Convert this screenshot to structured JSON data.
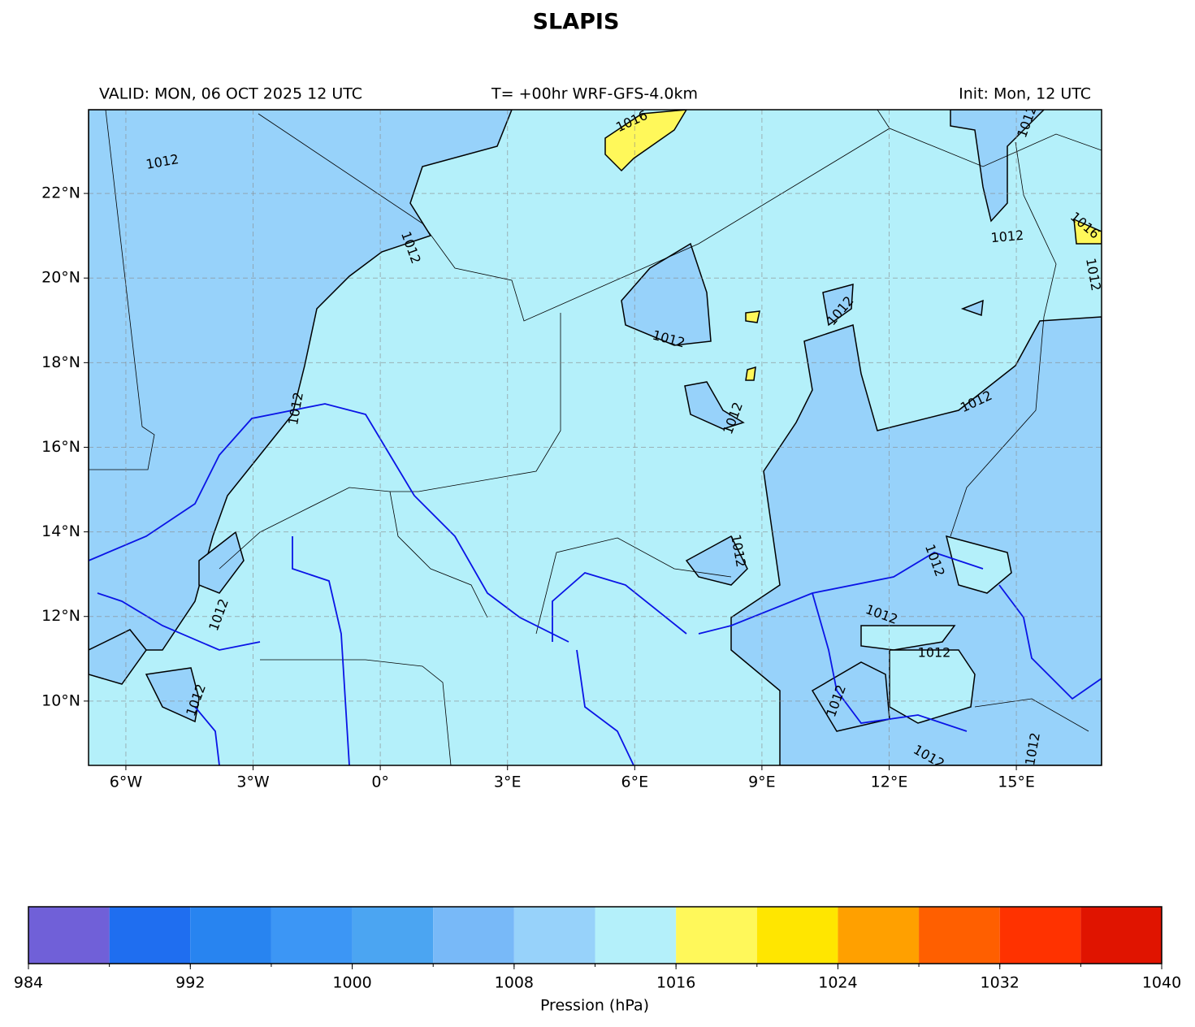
{
  "chart_data": {
    "type": "map",
    "title": "SLAPIS",
    "valid": "VALID: MON, 06 OCT 2025 12 UTC",
    "run": "T= +00hr WRF-GFS-4.0km",
    "init": "Init: Mon, 12 UTC",
    "xlim": [
      -6.88,
      17.01
    ],
    "ylim": [
      8.48,
      23.98
    ],
    "xticks": [
      {
        "value": -6,
        "label": "6°W"
      },
      {
        "value": -3,
        "label": "3°W"
      },
      {
        "value": 0,
        "label": "0°"
      },
      {
        "value": 3,
        "label": "3°E"
      },
      {
        "value": 6,
        "label": "6°E"
      },
      {
        "value": 9,
        "label": "9°E"
      },
      {
        "value": 12,
        "label": "12°E"
      },
      {
        "value": 15,
        "label": "15°E"
      }
    ],
    "yticks": [
      {
        "value": 10,
        "label": "10°N"
      },
      {
        "value": 12,
        "label": "12°N"
      },
      {
        "value": 14,
        "label": "14°N"
      },
      {
        "value": 16,
        "label": "16°N"
      },
      {
        "value": 18,
        "label": "18°N"
      },
      {
        "value": 20,
        "label": "20°N"
      },
      {
        "value": 22,
        "label": "22°N"
      }
    ],
    "grid": true,
    "contour_labels": [
      "1012",
      "1012",
      "1012",
      "1012",
      "1012",
      "1012",
      "1012",
      "1012",
      "1012",
      "1012",
      "1012",
      "1012",
      "1012",
      "1012",
      "1012",
      "1012",
      "1016",
      "1016",
      "1012",
      "1012",
      "1012"
    ],
    "colorbar": {
      "label": "Pression (hPa)",
      "bounds": [
        984,
        988,
        992,
        996,
        1000,
        1004,
        1008,
        1012,
        1016,
        1020,
        1024,
        1028,
        1032,
        1036,
        1040
      ],
      "colors": [
        "#7060d8",
        "#1f6ef0",
        "#2884f0",
        "#3c96f5",
        "#4ba5f2",
        "#78b9f8",
        "#97d2fa",
        "#b4f0fa",
        "#fff85a",
        "#ffe600",
        "#ffa000",
        "#ff5f00",
        "#ff3200",
        "#e01400"
      ],
      "ticks": [
        984,
        992,
        1000,
        1008,
        1016,
        1024,
        1032,
        1040
      ]
    }
  }
}
